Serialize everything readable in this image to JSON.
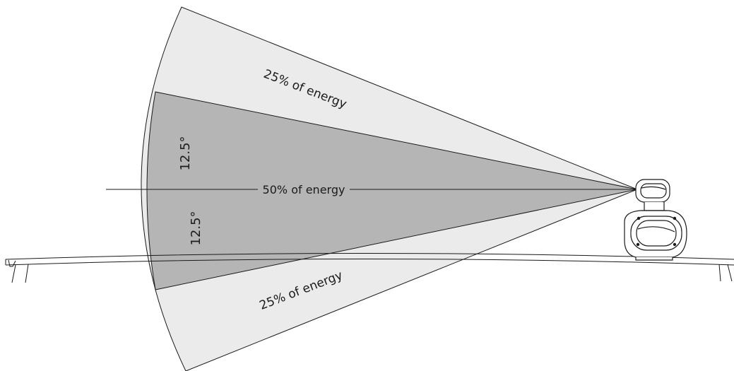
{
  "diagram": {
    "colors": {
      "outer_zone": "#ebebeb",
      "inner_zone": "#b5b5b5",
      "stroke": "#1a1a1a",
      "background": "#ffffff"
    },
    "labels": {
      "top_zone": "25% of energy",
      "center_zone": "50% of energy",
      "bottom_zone": "25% of energy",
      "upper_angle": "12.5°",
      "lower_angle": "12.5°"
    },
    "beam": {
      "inner_half_angle_deg": 12.5,
      "outer_share_percent": 25,
      "inner_share_percent": 50
    },
    "icons": {
      "device": "sonar-transducer-icon",
      "platform": "boat-rail-icon"
    }
  }
}
